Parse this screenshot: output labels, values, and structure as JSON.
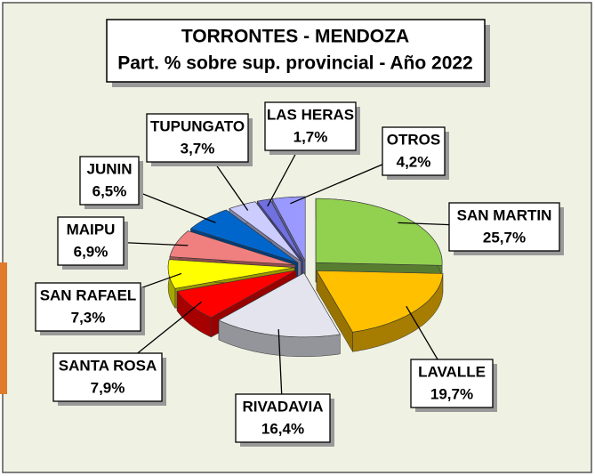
{
  "chart_data": {
    "type": "pie",
    "title": "TORRONTES - MENDOZA",
    "subtitle": "Part. % sobre sup. provincial - Año 2022",
    "categories": [
      "SAN MARTIN",
      "LAVALLE",
      "RIVADAVIA",
      "SANTA ROSA",
      "SAN RAFAEL",
      "MAIPU",
      "JUNIN",
      "TUPUNGATO",
      "LAS HERAS",
      "OTROS"
    ],
    "values": [
      25.7,
      19.7,
      16.4,
      7.9,
      7.3,
      6.9,
      6.5,
      3.7,
      1.7,
      4.2
    ],
    "value_labels": [
      "25,7%",
      "19,7%",
      "16,4%",
      "7,9%",
      "7,3%",
      "6,9%",
      "6,5%",
      "3,7%",
      "1,7%",
      "4,2%"
    ],
    "colors": [
      "#92d050",
      "#ffc000",
      "#e4e4ee",
      "#ff0000",
      "#ffff00",
      "#f08080",
      "#0066cc",
      "#ccccff",
      "#7070e0",
      "#9999ff"
    ]
  }
}
